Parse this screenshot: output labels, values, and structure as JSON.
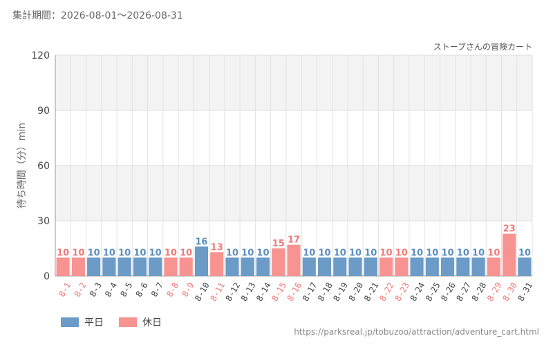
{
  "header": {
    "period": "集計期間：2026-08-01～2026-08-31"
  },
  "footer": {
    "source_url": "https://parksreal.jp/tobuzoo/attraction/adventure_cart.html"
  },
  "legend": {
    "weekday_label": "平日",
    "holiday_label": "休日",
    "weekday_color": "#6b9bc6",
    "holiday_color": "#f79391"
  },
  "chart_data": {
    "type": "bar",
    "title": "ストーブさんの冒険カート",
    "ylabel": "待ち時間（分）min",
    "xlabel": "",
    "ylim": [
      0,
      120
    ],
    "yticks": [
      0,
      30,
      60,
      90,
      120
    ],
    "grid": true,
    "legend_position": "bottom-left",
    "categories": [
      "8-1",
      "8-2",
      "8-3",
      "8-4",
      "8-5",
      "8-6",
      "8-7",
      "8-8",
      "8-9",
      "8-10",
      "8-11",
      "8-12",
      "8-13",
      "8-14",
      "8-15",
      "8-16",
      "8-17",
      "8-18",
      "8-19",
      "8-20",
      "8-21",
      "8-22",
      "8-23",
      "8-24",
      "8-25",
      "8-26",
      "8-27",
      "8-28",
      "8-29",
      "8-30",
      "8-31"
    ],
    "values": [
      10,
      10,
      10,
      10,
      10,
      10,
      10,
      10,
      10,
      16,
      13,
      10,
      10,
      10,
      15,
      17,
      10,
      10,
      10,
      10,
      10,
      10,
      10,
      10,
      10,
      10,
      10,
      10,
      10,
      23,
      10
    ],
    "day_type": [
      "holiday",
      "holiday",
      "weekday",
      "weekday",
      "weekday",
      "weekday",
      "weekday",
      "holiday",
      "holiday",
      "weekday",
      "holiday",
      "weekday",
      "weekday",
      "weekday",
      "holiday",
      "holiday",
      "weekday",
      "weekday",
      "weekday",
      "weekday",
      "weekday",
      "holiday",
      "holiday",
      "weekday",
      "weekday",
      "weekday",
      "weekday",
      "weekday",
      "holiday",
      "holiday",
      "weekday"
    ]
  }
}
